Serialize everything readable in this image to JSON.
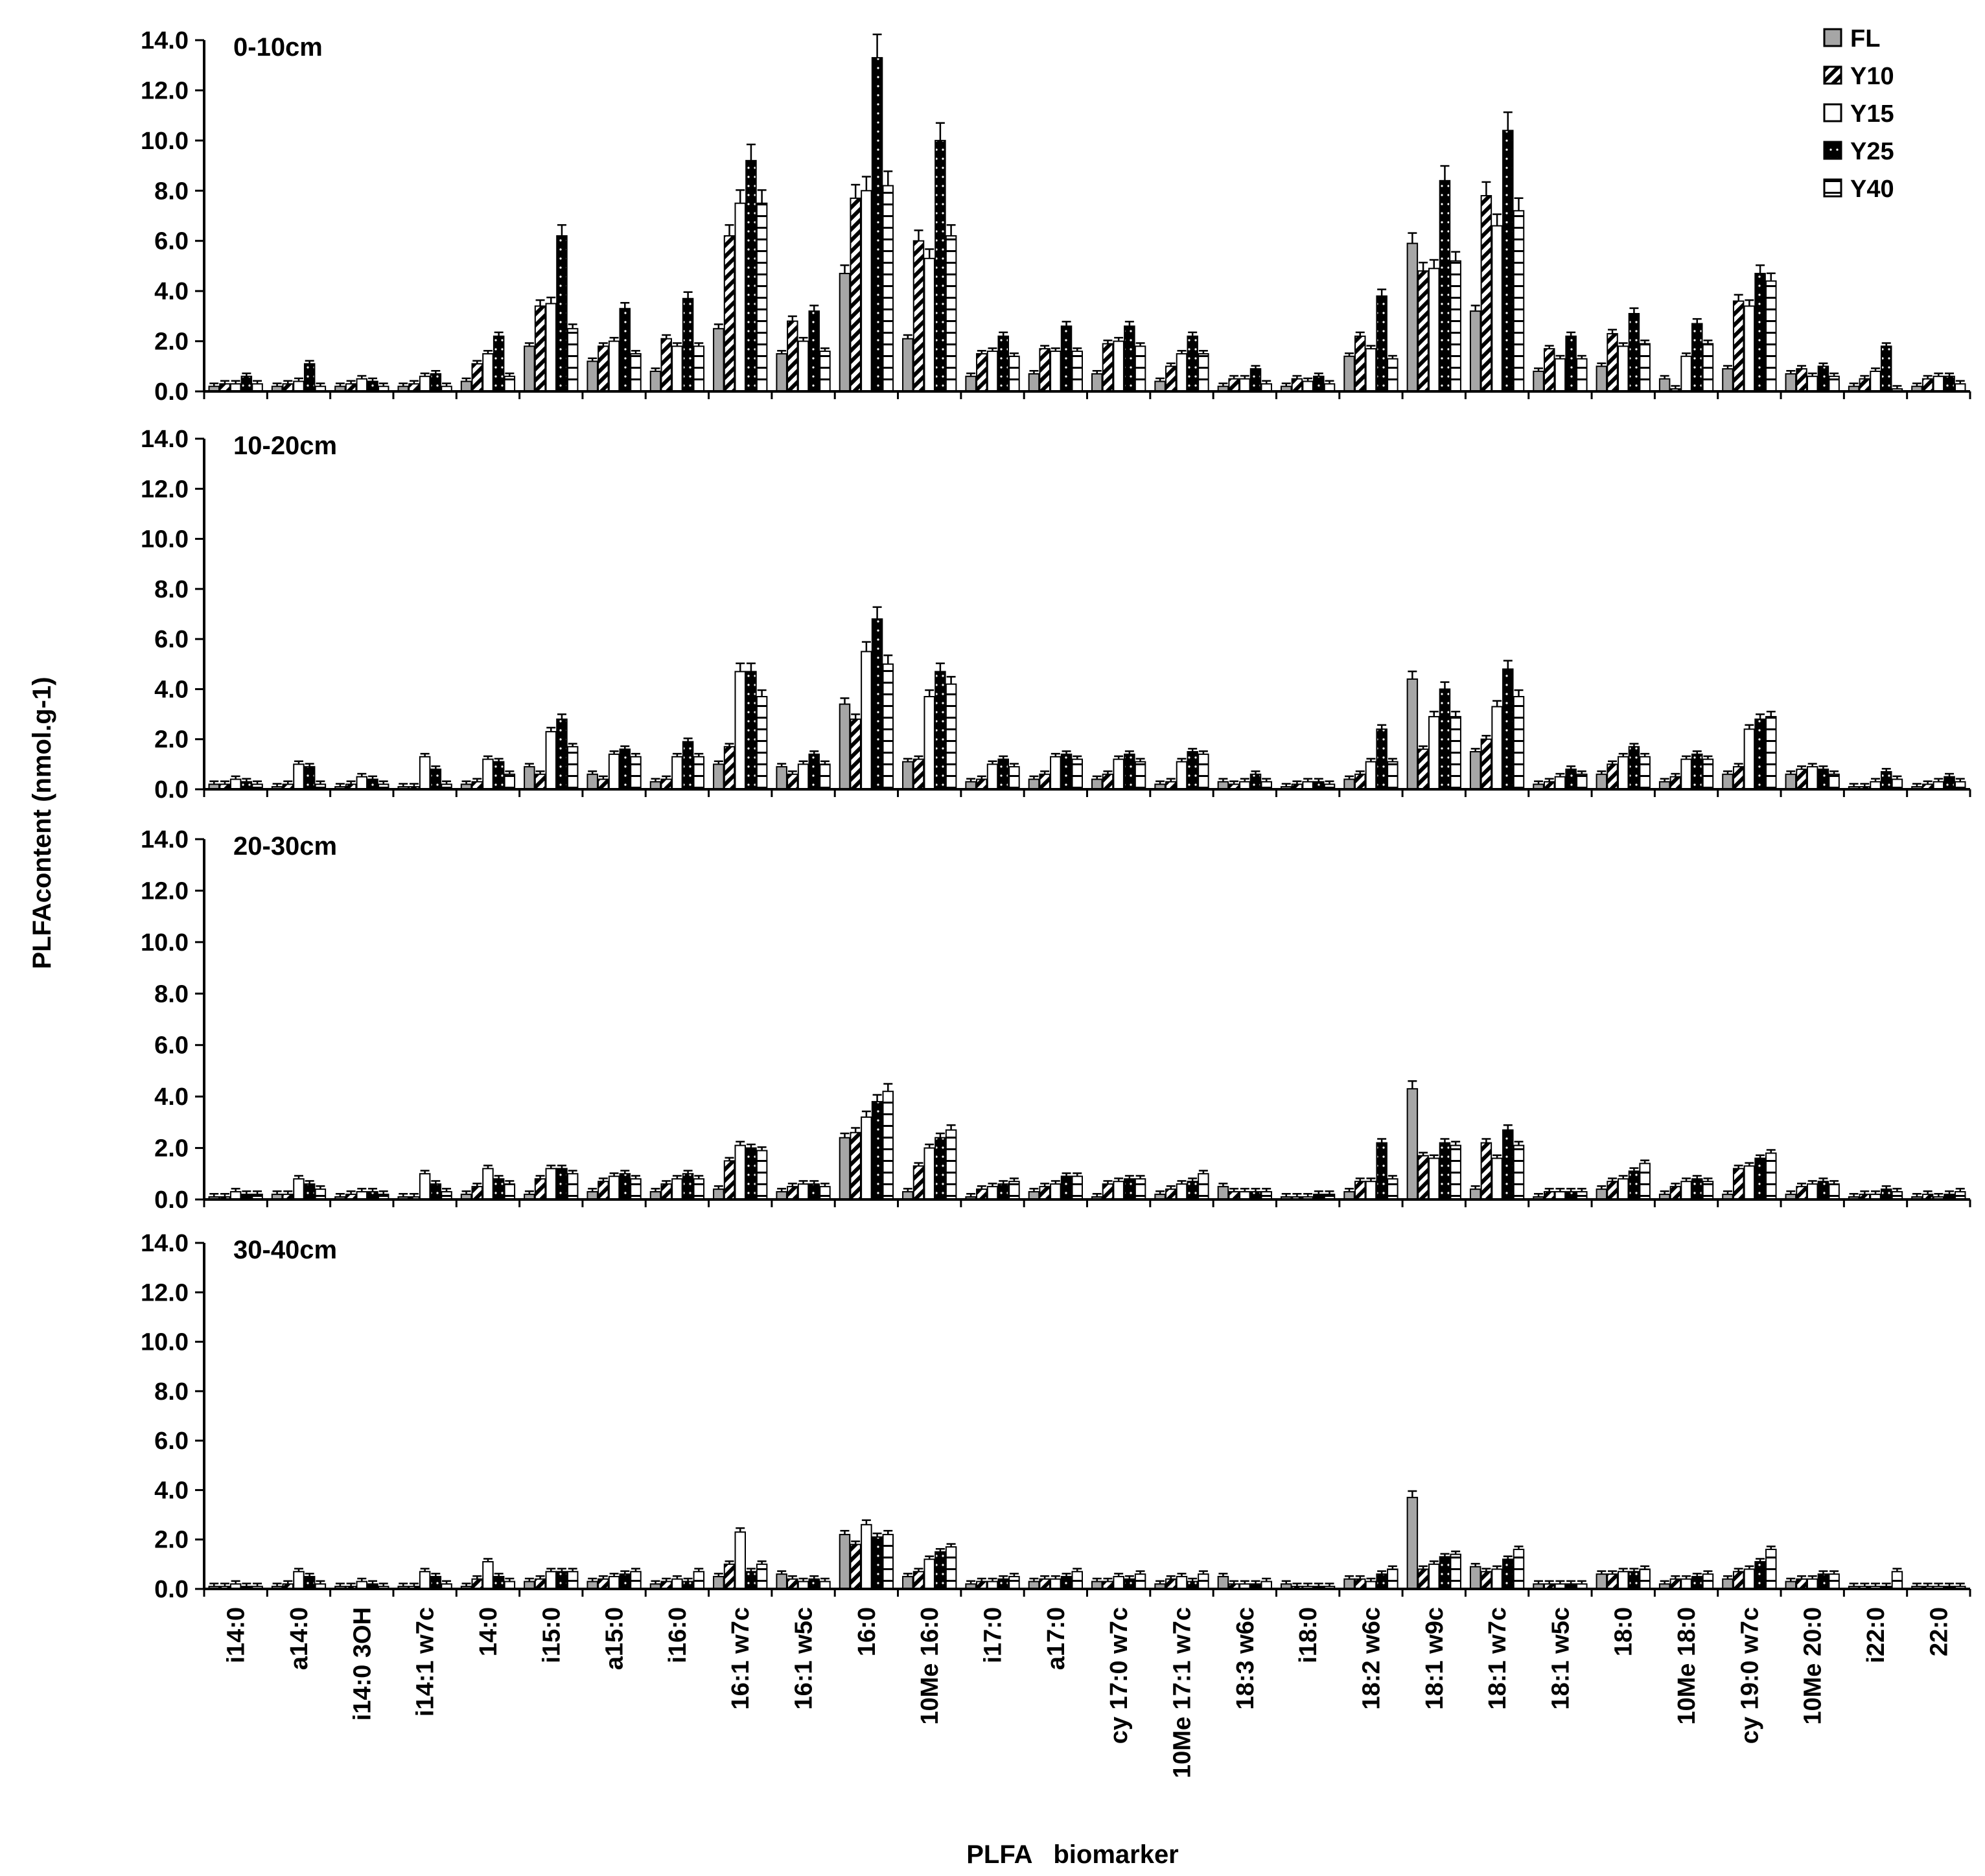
{
  "chart_data": {
    "type": "bar",
    "ylabel": "PLFAcontent (nmol.g-1)",
    "xlabel": "PLFA   biomarker",
    "ylim": [
      0,
      14
    ],
    "yticks": [
      "0.0",
      "2.0",
      "4.0",
      "6.0",
      "8.0",
      "10.0",
      "12.0",
      "14.0"
    ],
    "series_names": [
      "FL",
      "Y10",
      "Y15",
      "Y25",
      "Y40"
    ],
    "colors": {
      "FL": "#a6a6a6",
      "Y10": "#000000",
      "Y15": "#ffffff",
      "Y25": "#000000",
      "Y40": "#ffffff",
      "axis": "#000000"
    },
    "categories": [
      "i14:0",
      "a14:0",
      "i14:0 3OH",
      "i14:1 w7c",
      "14:0",
      "i15:0",
      "a15:0",
      "i16:0",
      "16:1 w7c",
      "16:1 w5c",
      "16:0",
      "10Me 16:0",
      "i17:0",
      "a17:0",
      "cy 17:0 w7c",
      "10Me 17:1 w7c",
      "18:3 w6c",
      "i18:0",
      "18:2 w6c",
      "18:1 w9c",
      "18:1 w7c",
      "18:1 w5c",
      "18:0",
      "10Me 18:0",
      "cy 19:0 w7c",
      "10Me 20:0",
      "i22:0",
      "22:0"
    ],
    "panels": [
      {
        "title": "0-10cm",
        "values": [
          [
            0.2,
            0.3,
            0.3,
            0.6,
            0.3
          ],
          [
            0.2,
            0.3,
            0.4,
            1.1,
            0.2
          ],
          [
            0.2,
            0.3,
            0.5,
            0.4,
            0.2
          ],
          [
            0.2,
            0.3,
            0.6,
            0.7,
            0.2
          ],
          [
            0.4,
            1.1,
            1.5,
            2.2,
            0.6
          ],
          [
            1.8,
            3.4,
            3.5,
            6.2,
            2.5
          ],
          [
            1.2,
            1.8,
            2.0,
            3.3,
            1.5
          ],
          [
            0.8,
            2.1,
            1.8,
            3.7,
            1.8
          ],
          [
            2.5,
            6.2,
            7.5,
            9.2,
            7.5
          ],
          [
            1.5,
            2.8,
            2.0,
            3.2,
            1.6
          ],
          [
            4.7,
            7.7,
            8.0,
            13.3,
            8.2
          ],
          [
            2.1,
            6.0,
            5.3,
            10.0,
            6.2
          ],
          [
            0.6,
            1.5,
            1.6,
            2.2,
            1.4
          ],
          [
            0.7,
            1.7,
            1.6,
            2.6,
            1.6
          ],
          [
            0.7,
            1.9,
            2.0,
            2.6,
            1.8
          ],
          [
            0.4,
            1.0,
            1.5,
            2.2,
            1.5
          ],
          [
            0.2,
            0.5,
            0.5,
            0.9,
            0.3
          ],
          [
            0.2,
            0.5,
            0.4,
            0.6,
            0.3
          ],
          [
            1.4,
            2.2,
            1.7,
            3.8,
            1.3
          ],
          [
            5.9,
            4.8,
            4.9,
            8.4,
            5.2
          ],
          [
            3.2,
            7.8,
            6.6,
            10.4,
            7.2
          ],
          [
            0.8,
            1.7,
            1.3,
            2.2,
            1.3
          ],
          [
            1.0,
            2.3,
            1.8,
            3.1,
            1.9
          ],
          [
            0.5,
            0.1,
            1.4,
            2.7,
            1.9
          ],
          [
            0.9,
            3.6,
            3.4,
            4.7,
            4.4
          ],
          [
            0.7,
            0.9,
            0.6,
            1.0,
            0.6
          ],
          [
            0.2,
            0.5,
            0.8,
            1.8,
            0.1
          ],
          [
            0.2,
            0.5,
            0.6,
            0.6,
            0.3
          ]
        ]
      },
      {
        "title": "10-20cm",
        "values": [
          [
            0.2,
            0.2,
            0.4,
            0.3,
            0.2
          ],
          [
            0.1,
            0.2,
            1.0,
            0.9,
            0.2
          ],
          [
            0.1,
            0.2,
            0.5,
            0.4,
            0.2
          ],
          [
            0.1,
            0.1,
            1.3,
            0.8,
            0.2
          ],
          [
            0.2,
            0.3,
            1.2,
            1.1,
            0.6
          ],
          [
            0.9,
            0.6,
            2.3,
            2.8,
            1.7
          ],
          [
            0.6,
            0.4,
            1.4,
            1.6,
            1.3
          ],
          [
            0.3,
            0.4,
            1.3,
            1.9,
            1.3
          ],
          [
            1.0,
            1.7,
            4.7,
            4.7,
            3.7
          ],
          [
            0.9,
            0.6,
            1.0,
            1.4,
            1.0
          ],
          [
            3.4,
            2.8,
            5.5,
            6.8,
            5.0
          ],
          [
            1.1,
            1.2,
            3.7,
            4.7,
            4.2
          ],
          [
            0.3,
            0.4,
            1.0,
            1.2,
            0.9
          ],
          [
            0.4,
            0.6,
            1.3,
            1.4,
            1.2
          ],
          [
            0.4,
            0.6,
            1.2,
            1.4,
            1.1
          ],
          [
            0.2,
            0.3,
            1.1,
            1.5,
            1.4
          ],
          [
            0.3,
            0.2,
            0.3,
            0.6,
            0.3
          ],
          [
            0.1,
            0.2,
            0.3,
            0.3,
            0.2
          ],
          [
            0.4,
            0.6,
            1.1,
            2.4,
            1.1
          ],
          [
            4.4,
            1.6,
            2.9,
            4.0,
            2.9
          ],
          [
            1.5,
            2.0,
            3.3,
            4.8,
            3.7
          ],
          [
            0.2,
            0.3,
            0.5,
            0.8,
            0.6
          ],
          [
            0.6,
            1.0,
            1.3,
            1.7,
            1.3
          ],
          [
            0.3,
            0.5,
            1.2,
            1.4,
            1.2
          ],
          [
            0.6,
            0.9,
            2.4,
            2.8,
            2.9
          ],
          [
            0.6,
            0.8,
            0.9,
            0.8,
            0.6
          ],
          [
            0.1,
            0.1,
            0.3,
            0.7,
            0.4
          ],
          [
            0.1,
            0.2,
            0.3,
            0.5,
            0.3
          ]
        ]
      },
      {
        "title": "20-30cm",
        "values": [
          [
            0.1,
            0.1,
            0.3,
            0.2,
            0.2
          ],
          [
            0.2,
            0.2,
            0.8,
            0.6,
            0.4
          ],
          [
            0.1,
            0.2,
            0.3,
            0.3,
            0.2
          ],
          [
            0.1,
            0.1,
            1.0,
            0.6,
            0.3
          ],
          [
            0.2,
            0.5,
            1.2,
            0.8,
            0.6
          ],
          [
            0.2,
            0.8,
            1.2,
            1.2,
            1.0
          ],
          [
            0.3,
            0.7,
            0.9,
            1.0,
            0.8
          ],
          [
            0.3,
            0.6,
            0.8,
            1.0,
            0.8
          ],
          [
            0.4,
            1.5,
            2.1,
            2.0,
            1.9
          ],
          [
            0.3,
            0.5,
            0.6,
            0.6,
            0.5
          ],
          [
            2.4,
            2.6,
            3.2,
            3.8,
            4.2
          ],
          [
            0.3,
            1.3,
            2.0,
            2.4,
            2.7
          ],
          [
            0.1,
            0.4,
            0.5,
            0.6,
            0.7
          ],
          [
            0.3,
            0.5,
            0.6,
            0.9,
            0.9
          ],
          [
            0.1,
            0.6,
            0.7,
            0.8,
            0.8
          ],
          [
            0.2,
            0.4,
            0.6,
            0.7,
            1.0
          ],
          [
            0.5,
            0.3,
            0.3,
            0.3,
            0.3
          ],
          [
            0.1,
            0.1,
            0.1,
            0.2,
            0.2
          ],
          [
            0.3,
            0.7,
            0.7,
            2.2,
            0.8
          ],
          [
            4.3,
            1.7,
            1.6,
            2.2,
            2.1
          ],
          [
            0.4,
            2.2,
            1.6,
            2.7,
            2.1
          ],
          [
            0.1,
            0.3,
            0.3,
            0.3,
            0.3
          ],
          [
            0.4,
            0.7,
            0.8,
            1.1,
            1.4
          ],
          [
            0.2,
            0.5,
            0.7,
            0.8,
            0.7
          ],
          [
            0.2,
            1.2,
            1.3,
            1.6,
            1.8
          ],
          [
            0.2,
            0.5,
            0.6,
            0.7,
            0.6
          ],
          [
            0.1,
            0.2,
            0.2,
            0.4,
            0.3
          ],
          [
            0.1,
            0.2,
            0.1,
            0.2,
            0.3
          ]
        ]
      },
      {
        "title": "30-40cm",
        "values": [
          [
            0.1,
            0.1,
            0.2,
            0.1,
            0.1
          ],
          [
            0.1,
            0.2,
            0.7,
            0.5,
            0.2
          ],
          [
            0.1,
            0.1,
            0.3,
            0.2,
            0.1
          ],
          [
            0.1,
            0.1,
            0.7,
            0.5,
            0.2
          ],
          [
            0.1,
            0.4,
            1.1,
            0.5,
            0.3
          ],
          [
            0.3,
            0.4,
            0.7,
            0.7,
            0.7
          ],
          [
            0.3,
            0.4,
            0.5,
            0.6,
            0.7
          ],
          [
            0.2,
            0.3,
            0.4,
            0.3,
            0.7
          ],
          [
            0.5,
            1.0,
            2.3,
            0.7,
            1.0
          ],
          [
            0.6,
            0.4,
            0.3,
            0.4,
            0.3
          ],
          [
            2.2,
            1.8,
            2.6,
            2.1,
            2.2
          ],
          [
            0.5,
            0.7,
            1.2,
            1.5,
            1.7
          ],
          [
            0.2,
            0.3,
            0.3,
            0.4,
            0.5
          ],
          [
            0.3,
            0.4,
            0.4,
            0.5,
            0.7
          ],
          [
            0.3,
            0.3,
            0.5,
            0.4,
            0.6
          ],
          [
            0.2,
            0.4,
            0.5,
            0.3,
            0.6
          ],
          [
            0.5,
            0.2,
            0.2,
            0.2,
            0.3
          ],
          [
            0.2,
            0.1,
            0.1,
            0.1,
            0.1
          ],
          [
            0.4,
            0.4,
            0.3,
            0.6,
            0.8
          ],
          [
            3.7,
            0.8,
            1.0,
            1.3,
            1.4
          ],
          [
            0.9,
            0.7,
            0.8,
            1.2,
            1.6
          ],
          [
            0.2,
            0.2,
            0.2,
            0.2,
            0.2
          ],
          [
            0.6,
            0.6,
            0.7,
            0.7,
            0.8
          ],
          [
            0.2,
            0.4,
            0.4,
            0.5,
            0.6
          ],
          [
            0.4,
            0.7,
            0.8,
            1.1,
            1.6
          ],
          [
            0.3,
            0.4,
            0.4,
            0.6,
            0.6
          ],
          [
            0.1,
            0.1,
            0.1,
            0.1,
            0.7
          ],
          [
            0.1,
            0.1,
            0.1,
            0.1,
            0.1
          ]
        ]
      }
    ]
  }
}
